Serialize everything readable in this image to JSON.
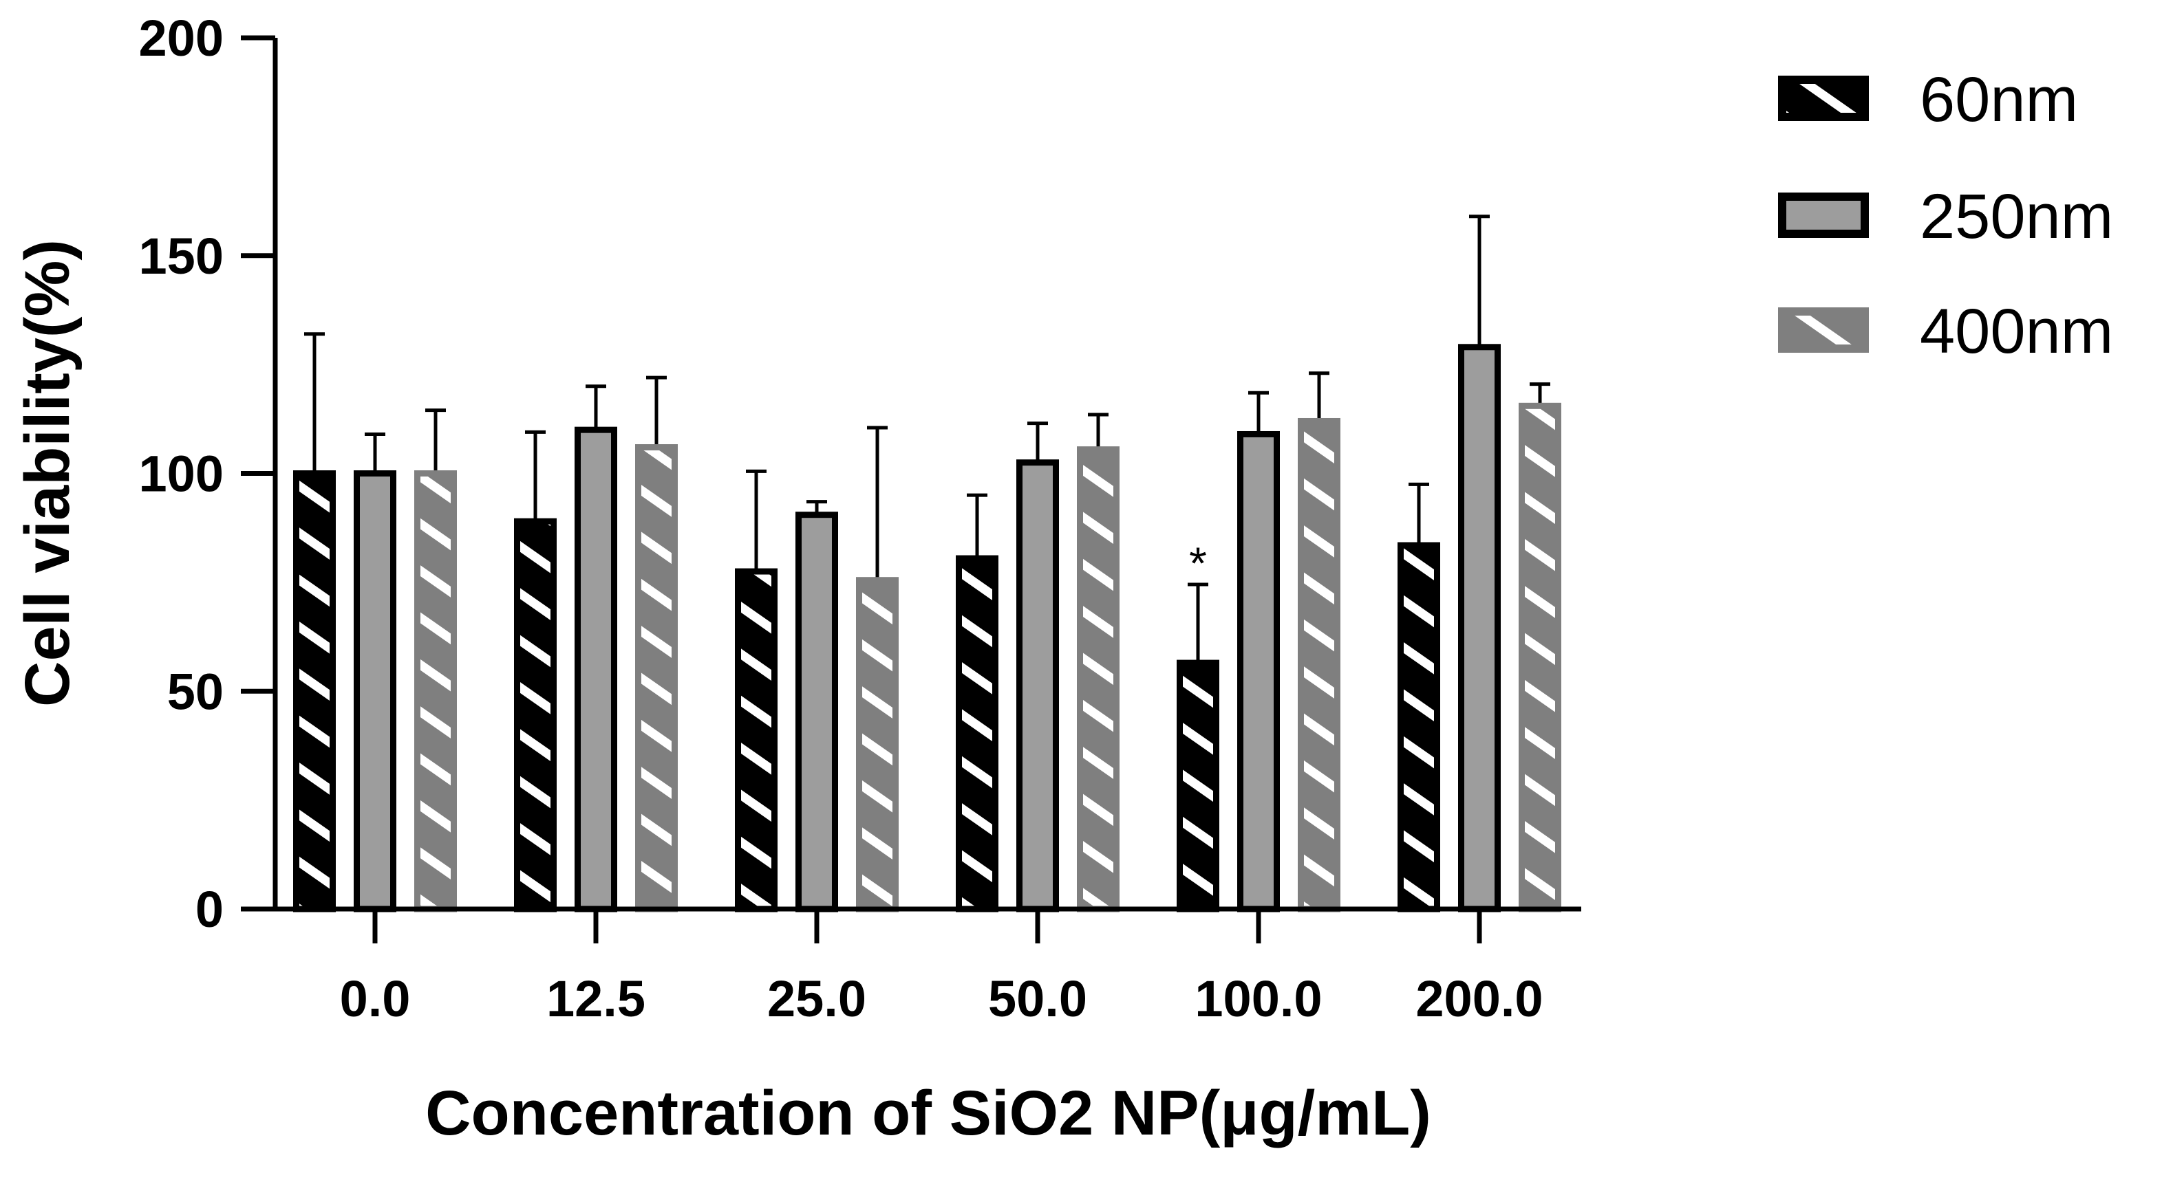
{
  "chart_data": {
    "type": "bar",
    "title": "",
    "xlabel": "Concentration of SiO2 NP(μg/mL)",
    "ylabel": "Cell viability(%)",
    "ylim": [
      0,
      200
    ],
    "yticks": [
      "0",
      "50",
      "100",
      "150",
      "200"
    ],
    "categories": [
      "0.0",
      "12.5",
      "25.0",
      "50.0",
      "100.0",
      "200.0"
    ],
    "series": [
      {
        "name": "60nm",
        "style": "black-hatched",
        "values": [
          100,
          89,
          77.5,
          80.5,
          56.5,
          83.5
        ],
        "errors": [
          32,
          20.5,
          23,
          14.5,
          18,
          14
        ]
      },
      {
        "name": "250nm",
        "style": "gray-solid",
        "values": [
          100,
          110,
          90.5,
          102.5,
          109,
          129
        ],
        "errors": [
          9,
          10,
          3,
          9,
          9.5,
          30
        ]
      },
      {
        "name": "400nm",
        "style": "gray-hatched",
        "values": [
          100,
          106,
          75.5,
          105.5,
          112,
          115.5
        ],
        "errors": [
          14.5,
          16,
          35,
          8,
          11,
          5
        ]
      }
    ],
    "annotations": [
      {
        "text": "*",
        "series": "60nm",
        "category": "100.0"
      }
    ],
    "colors": {
      "black": "#000000",
      "gray_fill": "#9d9d9d",
      "gray_hatch": "#7f7f7f",
      "white": "#ffffff"
    },
    "legend_position": "top-right"
  }
}
